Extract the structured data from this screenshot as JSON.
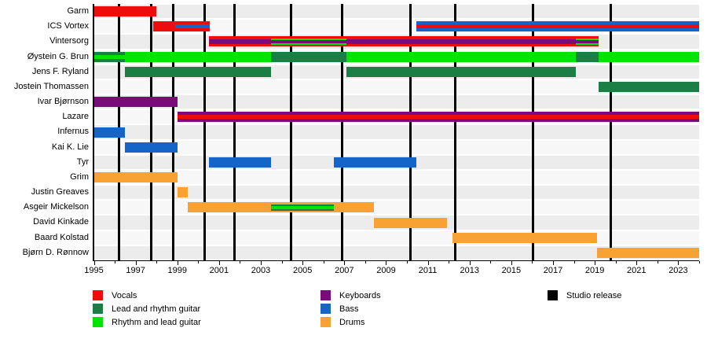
{
  "chart_data": {
    "type": "bar",
    "subtype": "gantt-band-timeline",
    "title": "",
    "x_axis": {
      "start": 1995,
      "end": 2024,
      "major_tick_labels": [
        "1995",
        "1997",
        "1999",
        "2001",
        "2003",
        "2005",
        "2007",
        "2009",
        "2011",
        "2013",
        "2015",
        "2017",
        "2019",
        "2021",
        "2023"
      ],
      "major_tick_years": [
        1995,
        1997,
        1999,
        2001,
        2003,
        2005,
        2007,
        2009,
        2011,
        2013,
        2015,
        2017,
        2019,
        2021,
        2023
      ],
      "minor_tick_every": 1,
      "grid": "off"
    },
    "palette": {
      "vocals": "#EE0D0D",
      "lead_guitar": "#1B7E45",
      "rhythm_guitar": "#00E400",
      "keyboards": "#7A0B7A",
      "bass": "#1565C8",
      "drums": "#F7A233",
      "release": "#000000",
      "row_even": "#ECECEC",
      "row_odd": "#F7F7F7"
    },
    "releases": [
      1996.2,
      1997.75,
      1998.8,
      2000.3,
      2001.75,
      2004.45,
      2006.9,
      2010.15,
      2012.3,
      2016.05,
      2019.75
    ],
    "members": [
      {
        "name": "Garm",
        "segments": [
          {
            "start": 1995,
            "end": 1998,
            "layers": [
              {
                "role": "vocals",
                "f": 1
              }
            ]
          }
        ]
      },
      {
        "name": "ICS Vortex",
        "segments": [
          {
            "start": 1997.85,
            "end": 1998.9,
            "layers": [
              {
                "role": "vocals",
                "f": 1
              }
            ]
          },
          {
            "start": 1998.9,
            "end": 2000.55,
            "layers": [
              {
                "role": "vocals",
                "f": 0.32
              },
              {
                "role": "bass",
                "f": 0.36
              },
              {
                "role": "vocals",
                "f": 0.32
              }
            ]
          },
          {
            "start": 2010.45,
            "end": 2024,
            "layers": [
              {
                "role": "bass",
                "f": 0.3
              },
              {
                "role": "vocals",
                "f": 0.4
              },
              {
                "role": "bass",
                "f": 0.3
              }
            ]
          }
        ]
      },
      {
        "name": "Vintersorg",
        "segments": [
          {
            "start": 2000.5,
            "end": 2003.5,
            "layers": [
              {
                "role": "vocals",
                "f": 0.3
              },
              {
                "role": "keyboards",
                "f": 0.4
              },
              {
                "role": "vocals",
                "f": 0.3
              }
            ]
          },
          {
            "start": 2003.5,
            "end": 2007.1,
            "layers": [
              {
                "role": "vocals",
                "f": 0.18
              },
              {
                "role": "rhythm_guitar",
                "f": 0.18
              },
              {
                "role": "keyboards",
                "f": 0.28
              },
              {
                "role": "rhythm_guitar",
                "f": 0.18
              },
              {
                "role": "vocals",
                "f": 0.18
              }
            ]
          },
          {
            "start": 2007.1,
            "end": 2018.1,
            "layers": [
              {
                "role": "vocals",
                "f": 0.3
              },
              {
                "role": "keyboards",
                "f": 0.4
              },
              {
                "role": "vocals",
                "f": 0.3
              }
            ]
          },
          {
            "start": 2018.1,
            "end": 2019.2,
            "layers": [
              {
                "role": "vocals",
                "f": 0.18
              },
              {
                "role": "rhythm_guitar",
                "f": 0.18
              },
              {
                "role": "keyboards",
                "f": 0.28
              },
              {
                "role": "rhythm_guitar",
                "f": 0.18
              },
              {
                "role": "vocals",
                "f": 0.18
              }
            ]
          }
        ]
      },
      {
        "name": "Øystein G. Brun",
        "segments": [
          {
            "start": 1995,
            "end": 1996.5,
            "layers": [
              {
                "role": "lead_guitar",
                "f": 0.3
              },
              {
                "role": "rhythm_guitar",
                "f": 0.4
              },
              {
                "role": "lead_guitar",
                "f": 0.3
              }
            ]
          },
          {
            "start": 1996.5,
            "end": 2003.5,
            "layers": [
              {
                "role": "rhythm_guitar",
                "f": 1
              }
            ]
          },
          {
            "start": 2003.5,
            "end": 2007.1,
            "layers": [
              {
                "role": "lead_guitar",
                "f": 1
              }
            ]
          },
          {
            "start": 2007.1,
            "end": 2018.1,
            "layers": [
              {
                "role": "rhythm_guitar",
                "f": 1
              }
            ]
          },
          {
            "start": 2018.1,
            "end": 2019.2,
            "layers": [
              {
                "role": "lead_guitar",
                "f": 1
              }
            ]
          },
          {
            "start": 2019.2,
            "end": 2024,
            "layers": [
              {
                "role": "rhythm_guitar",
                "f": 1
              }
            ]
          }
        ]
      },
      {
        "name": "Jens F. Ryland",
        "segments": [
          {
            "start": 1996.5,
            "end": 2003.5,
            "layers": [
              {
                "role": "lead_guitar",
                "f": 1
              }
            ]
          },
          {
            "start": 2007.1,
            "end": 2018.1,
            "layers": [
              {
                "role": "lead_guitar",
                "f": 1
              }
            ]
          }
        ]
      },
      {
        "name": "Jostein Thomassen",
        "segments": [
          {
            "start": 2019.2,
            "end": 2024,
            "layers": [
              {
                "role": "lead_guitar",
                "f": 1
              }
            ]
          }
        ]
      },
      {
        "name": "Ivar Bjørnson",
        "segments": [
          {
            "start": 1995,
            "end": 1999,
            "layers": [
              {
                "role": "keyboards",
                "f": 1
              }
            ]
          }
        ]
      },
      {
        "name": "Lazare",
        "segments": [
          {
            "start": 1999,
            "end": 2024,
            "layers": [
              {
                "role": "keyboards",
                "f": 0.3
              },
              {
                "role": "vocals",
                "f": 0.4
              },
              {
                "role": "keyboards",
                "f": 0.3
              }
            ]
          }
        ]
      },
      {
        "name": "Infernus",
        "segments": [
          {
            "start": 1995,
            "end": 1996.5,
            "layers": [
              {
                "role": "bass",
                "f": 1
              }
            ]
          }
        ]
      },
      {
        "name": "Kai K. Lie",
        "segments": [
          {
            "start": 1996.5,
            "end": 1999,
            "layers": [
              {
                "role": "bass",
                "f": 1
              }
            ]
          }
        ]
      },
      {
        "name": "Tyr",
        "segments": [
          {
            "start": 2000.5,
            "end": 2003.5,
            "layers": [
              {
                "role": "bass",
                "f": 1
              }
            ]
          },
          {
            "start": 2006.5,
            "end": 2010.45,
            "layers": [
              {
                "role": "bass",
                "f": 1
              }
            ]
          }
        ]
      },
      {
        "name": "Grim",
        "segments": [
          {
            "start": 1995,
            "end": 1999,
            "layers": [
              {
                "role": "drums",
                "f": 1
              }
            ]
          }
        ]
      },
      {
        "name": "Justin Greaves",
        "segments": [
          {
            "start": 1999,
            "end": 1999.5,
            "layers": [
              {
                "role": "drums",
                "f": 1
              }
            ]
          }
        ]
      },
      {
        "name": "Asgeir Mickelson",
        "segments": [
          {
            "start": 1999.5,
            "end": 2003.5,
            "layers": [
              {
                "role": "drums",
                "f": 1
              }
            ]
          },
          {
            "start": 2003.5,
            "end": 2006.5,
            "layers": [
              {
                "role": "drums",
                "f": 0.2
              },
              {
                "role": "lead_guitar",
                "f": 0.13
              },
              {
                "role": "rhythm_guitar",
                "f": 0.34
              },
              {
                "role": "lead_guitar",
                "f": 0.13
              },
              {
                "role": "drums",
                "f": 0.2
              }
            ]
          },
          {
            "start": 2006.5,
            "end": 2008.4,
            "layers": [
              {
                "role": "drums",
                "f": 1
              }
            ]
          }
        ]
      },
      {
        "name": "David Kinkade",
        "segments": [
          {
            "start": 2008.4,
            "end": 2011.9,
            "layers": [
              {
                "role": "drums",
                "f": 1
              }
            ]
          }
        ]
      },
      {
        "name": "Baard Kolstad",
        "segments": [
          {
            "start": 2012.2,
            "end": 2019.1,
            "layers": [
              {
                "role": "drums",
                "f": 1
              }
            ]
          }
        ]
      },
      {
        "name": "Bjørn D. Rønnow",
        "segments": [
          {
            "start": 2019.1,
            "end": 2024,
            "layers": [
              {
                "role": "drums",
                "f": 1
              }
            ]
          }
        ]
      }
    ],
    "legend": [
      {
        "label": "Vocals",
        "role": "vocals"
      },
      {
        "label": "Lead and rhythm guitar",
        "role": "lead_guitar"
      },
      {
        "label": "Rhythm and lead guitar",
        "role": "rhythm_guitar"
      },
      {
        "label": "Keyboards",
        "role": "keyboards"
      },
      {
        "label": "Bass",
        "role": "bass"
      },
      {
        "label": "Drums",
        "role": "drums"
      },
      {
        "label": "Studio release",
        "role": "release"
      }
    ],
    "legend_position": "bottom"
  }
}
